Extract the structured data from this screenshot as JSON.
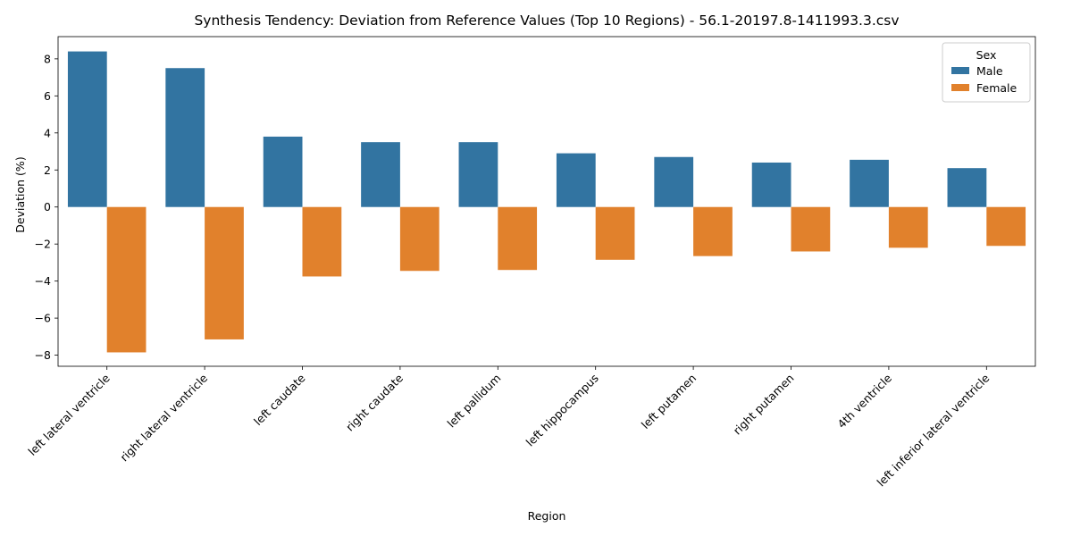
{
  "chart_data": {
    "type": "bar",
    "title": "Synthesis Tendency: Deviation from Reference Values (Top 10 Regions) - 56.1-20197.8-1411993.3.csv",
    "xlabel": "Region",
    "ylabel": "Deviation (%)",
    "ylim": [
      -8.6,
      9.2
    ],
    "yticks": [
      -8,
      -6,
      -4,
      -2,
      0,
      2,
      4,
      6,
      8
    ],
    "categories": [
      "left lateral ventricle",
      "right lateral ventricle",
      "left caudate",
      "right caudate",
      "left pallidum",
      "left hippocampus",
      "left putamen",
      "right putamen",
      "4th ventricle",
      "left inferior lateral ventricle"
    ],
    "series": [
      {
        "name": "Male",
        "color": "#3274a1",
        "values": [
          8.4,
          7.5,
          3.8,
          3.5,
          3.5,
          2.9,
          2.7,
          2.4,
          2.55,
          2.1
        ]
      },
      {
        "name": "Female",
        "color": "#e1812c",
        "values": [
          -7.85,
          -7.15,
          -3.75,
          -3.45,
          -3.4,
          -2.85,
          -2.65,
          -2.4,
          -2.2,
          -2.1
        ]
      }
    ],
    "legend": {
      "title": "Sex",
      "placement": "top-right"
    },
    "grid": false
  }
}
